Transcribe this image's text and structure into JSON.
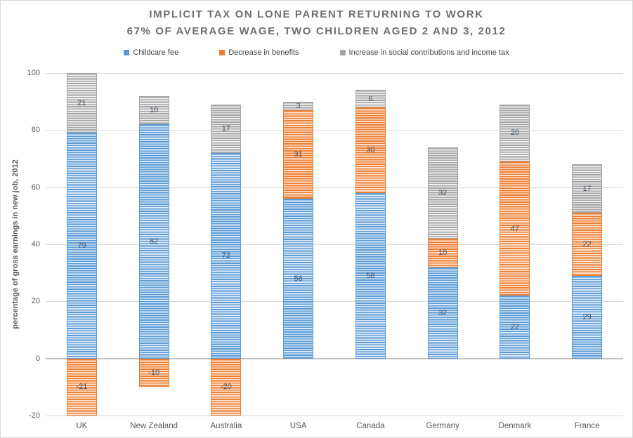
{
  "chart_data": {
    "type": "bar",
    "stacked": true,
    "title_line1": "IMPLICIT TAX ON LONE PARENT RETURNING TO WORK",
    "title_line2": "67% OF AVERAGE WAGE, TWO CHILDREN AGED 2 AND 3, 2012",
    "ylabel": "percentage of gross earnings in new job, 2012",
    "ylim": [
      -20,
      100
    ],
    "yticks": [
      100,
      80,
      60,
      40,
      20,
      0,
      -20
    ],
    "grid": true,
    "legend_position": "top",
    "categories": [
      "UK",
      "New Zealand",
      "Australia",
      "USA",
      "Canada",
      "Germany",
      "Denmark",
      "France"
    ],
    "series": [
      {
        "name": "Childcare fee",
        "color": "#5B9BD5",
        "light_color": "#DCE9F7",
        "values": [
          79,
          82,
          72,
          56,
          58,
          32,
          22,
          29
        ]
      },
      {
        "name": "Decrease in benefits",
        "color": "#ED7D31",
        "light_color": "#FBE4D3",
        "values": [
          -21,
          -10,
          -20,
          31,
          30,
          10,
          47,
          22
        ]
      },
      {
        "name": "Increase in social contributions and income tax",
        "color": "#A5A5A5",
        "light_color": "#EFEFEF",
        "values": [
          21,
          10,
          17,
          3,
          6,
          32,
          20,
          17
        ]
      }
    ],
    "label_color": "#44546A",
    "axis_text_color": "#595959",
    "gridline_color": "#D9D9D9",
    "zero_line_color": "#BFBFBF"
  }
}
